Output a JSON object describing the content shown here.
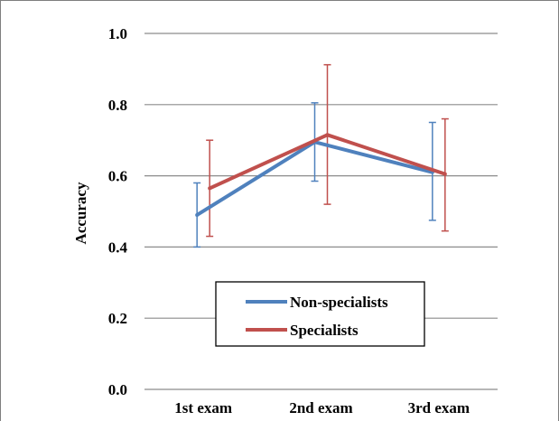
{
  "chart_data": {
    "type": "line",
    "title": "",
    "xlabel": "",
    "ylabel": "Accuracy",
    "categories": [
      "1st exam",
      "2nd exam",
      "3rd exam"
    ],
    "ylim": [
      0.0,
      1.0
    ],
    "yticks": [
      "0.0",
      "0.2",
      "0.4",
      "0.6",
      "0.8",
      "1.0"
    ],
    "grid": "horizontal",
    "legend_position": "lower center",
    "error_bars": true,
    "series": [
      {
        "name": "Non-specialists",
        "color": "#4f81bd",
        "values": [
          0.49,
          0.695,
          0.61
        ],
        "error_low": [
          0.4,
          0.585,
          0.475
        ],
        "error_high": [
          0.58,
          0.805,
          0.75
        ]
      },
      {
        "name": "Specialists",
        "color": "#c0504d",
        "values": [
          0.565,
          0.715,
          0.605
        ],
        "error_low": [
          0.43,
          0.52,
          0.445
        ],
        "error_high": [
          0.7,
          0.912,
          0.76
        ]
      }
    ]
  }
}
